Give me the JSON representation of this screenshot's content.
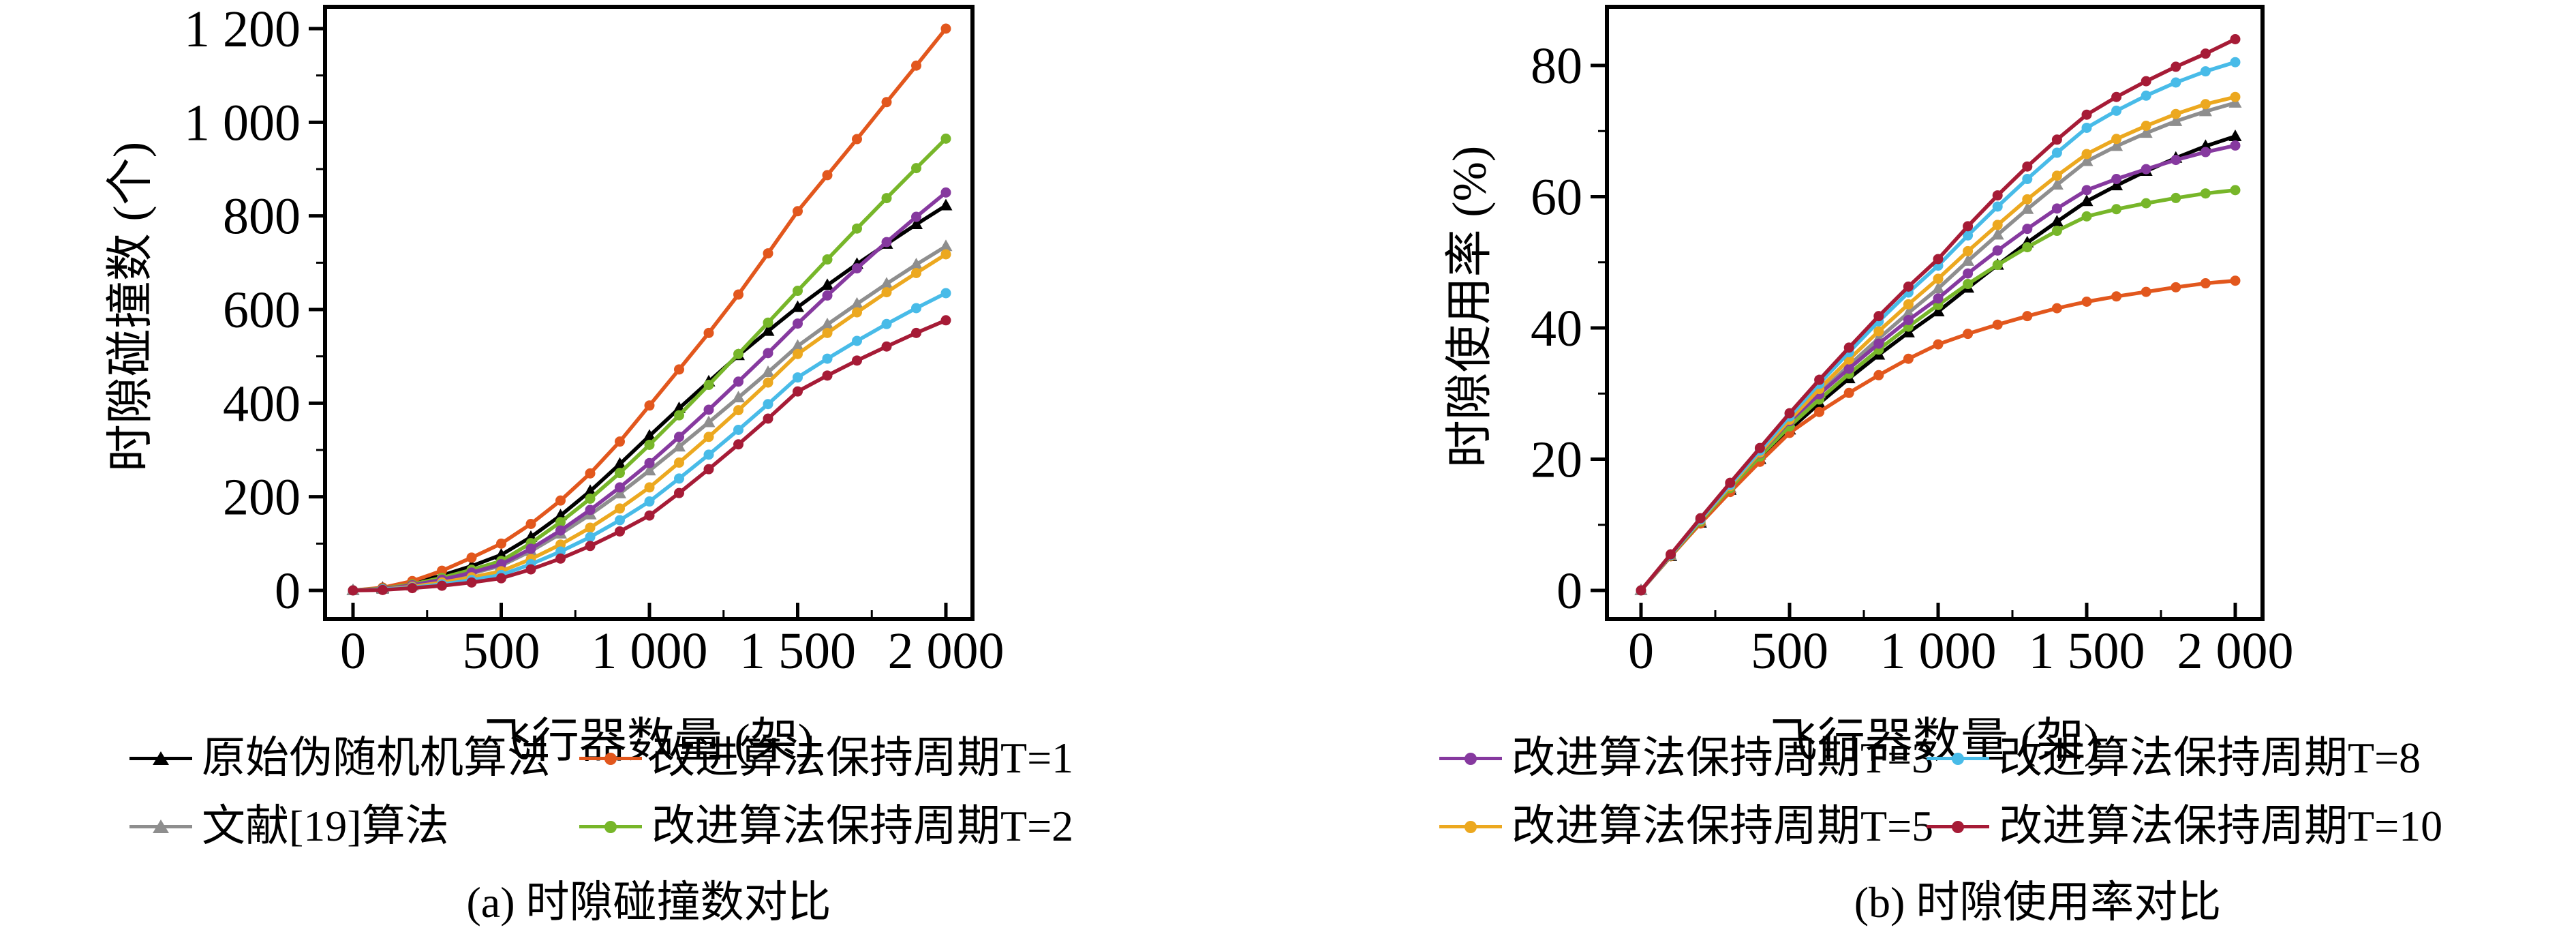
{
  "page": {
    "background": "#ffffff"
  },
  "chart_data": [
    {
      "id": "a",
      "type": "line",
      "title": "(a) 时隙碰撞数对比",
      "xlabel": "飞行器数量 (架)",
      "ylabel": "时隙碰撞数 (个)",
      "xlim": [
        0,
        2000
      ],
      "ylim": [
        0,
        1200
      ],
      "grid": false,
      "legend_position": "below",
      "x_ticks": {
        "values": [
          0,
          500,
          1000,
          1500,
          2000
        ],
        "labels": [
          "0",
          "500",
          "1 000",
          "1 500",
          "2 000"
        ]
      },
      "y_ticks": {
        "values": [
          0,
          200,
          400,
          600,
          800,
          1000,
          1200
        ],
        "labels": [
          "0",
          "200",
          "400",
          "600",
          "800",
          "1 000",
          "1 200"
        ]
      },
      "x": [
        0,
        100,
        200,
        300,
        400,
        500,
        600,
        700,
        800,
        900,
        1000,
        1100,
        1200,
        1300,
        1400,
        1500,
        1600,
        1700,
        1800,
        1900,
        2000
      ],
      "series": [
        {
          "name": "原始伪随机机算法",
          "color": "#000000",
          "marker": "triangle",
          "values": [
            0,
            5,
            16,
            32,
            52,
            76,
            114,
            160,
            212,
            270,
            330,
            389,
            446,
            502,
            554,
            605,
            652,
            697,
            740,
            782,
            822
          ]
        },
        {
          "name": "文献[19]算法",
          "color": "#8e8e8e",
          "marker": "triangle",
          "values": [
            0,
            3,
            10,
            22,
            36,
            53,
            84,
            121,
            162,
            207,
            256,
            307,
            359,
            412,
            466,
            522,
            568,
            612,
            655,
            696,
            735
          ]
        },
        {
          "name": "改进算法保持周期T=1",
          "color": "#e2571d",
          "marker": "circle",
          "values": [
            0,
            6,
            20,
            42,
            70,
            100,
            142,
            192,
            250,
            318,
            395,
            472,
            550,
            632,
            720,
            810,
            887,
            964,
            1043,
            1121,
            1200
          ]
        },
        {
          "name": "改进算法保持周期T=2",
          "color": "#77b629",
          "marker": "circle",
          "values": [
            0,
            4,
            13,
            27,
            44,
            63,
            101,
            146,
            196,
            251,
            311,
            374,
            439,
            505,
            572,
            640,
            707,
            773,
            838,
            902,
            965
          ]
        },
        {
          "name": "改进算法保持周期T=3",
          "color": "#86399f",
          "marker": "circle",
          "values": [
            0,
            3,
            11,
            23,
            38,
            56,
            89,
            128,
            172,
            220,
            272,
            328,
            386,
            446,
            507,
            570,
            630,
            688,
            744,
            798,
            850
          ]
        },
        {
          "name": "改进算法保持周期T=5",
          "color": "#eca81f",
          "marker": "circle",
          "values": [
            0,
            2,
            8,
            17,
            28,
            41,
            67,
            98,
            134,
            175,
            220,
            273,
            328,
            385,
            444,
            505,
            550,
            594,
            637,
            678,
            718
          ]
        },
        {
          "name": "改进算法保持周期T=8",
          "color": "#48bbe8",
          "marker": "circle",
          "values": [
            0,
            2,
            6,
            13,
            22,
            33,
            56,
            83,
            114,
            150,
            190,
            239,
            290,
            343,
            398,
            455,
            495,
            533,
            569,
            603,
            635
          ]
        },
        {
          "name": "改进算法保持周期T=10",
          "color": "#a61b36",
          "marker": "circle",
          "values": [
            0,
            1,
            5,
            10,
            17,
            26,
            45,
            68,
            95,
            126,
            160,
            208,
            259,
            312,
            367,
            425,
            459,
            491,
            521,
            550,
            577
          ]
        }
      ],
      "legend_rows": [
        [
          0,
          2
        ],
        [
          1,
          3
        ]
      ]
    },
    {
      "id": "b",
      "type": "line",
      "title": "(b) 时隙使用率对比",
      "xlabel": "飞行器数量 (架)",
      "ylabel": "时隙使用率 (%)",
      "xlim": [
        0,
        2000
      ],
      "ylim": [
        0,
        80
      ],
      "grid": false,
      "legend_position": "below",
      "x_ticks": {
        "values": [
          0,
          500,
          1000,
          1500,
          2000
        ],
        "labels": [
          "0",
          "500",
          "1 000",
          "1 500",
          "2 000"
        ]
      },
      "y_ticks": {
        "values": [
          0,
          20,
          40,
          60,
          80
        ],
        "labels": [
          "0",
          "20",
          "40",
          "60",
          "80"
        ]
      },
      "x": [
        0,
        100,
        200,
        300,
        400,
        500,
        600,
        700,
        800,
        900,
        1000,
        1100,
        1200,
        1300,
        1400,
        1500,
        1600,
        1700,
        1800,
        1900,
        2000
      ],
      "series": [
        {
          "name": "原始伪随机机算法",
          "color": "#000000",
          "marker": "triangle",
          "values": [
            0,
            5.2,
            10.3,
            15.3,
            20.0,
            24.5,
            28.5,
            32.3,
            35.9,
            39.3,
            42.5,
            46.1,
            49.6,
            53.0,
            56.2,
            59.3,
            61.7,
            63.9,
            65.9,
            67.7,
            69.2
          ]
        },
        {
          "name": "文献[19]算法",
          "color": "#8e8e8e",
          "marker": "triangle",
          "values": [
            0,
            5.3,
            10.5,
            15.6,
            20.6,
            25.5,
            30.0,
            34.3,
            38.4,
            42.3,
            46.0,
            50.2,
            54.2,
            58.1,
            61.8,
            65.4,
            67.7,
            69.7,
            71.5,
            73.0,
            74.3
          ]
        },
        {
          "name": "改进算法保持周期T=1",
          "color": "#e2571d",
          "marker": "circle",
          "values": [
            0,
            5.2,
            10.2,
            15.0,
            19.6,
            24.0,
            27.2,
            30.1,
            32.8,
            35.3,
            37.5,
            39.1,
            40.5,
            41.8,
            43.0,
            44.0,
            44.8,
            45.5,
            46.2,
            46.8,
            47.2
          ]
        },
        {
          "name": "改进算法保持周期T=2",
          "color": "#77b629",
          "marker": "circle",
          "values": [
            0,
            5.3,
            10.5,
            15.6,
            20.4,
            25.0,
            29.1,
            33.0,
            36.7,
            40.2,
            43.5,
            46.7,
            49.6,
            52.3,
            54.8,
            57.0,
            58.1,
            59.0,
            59.8,
            60.5,
            61.0
          ]
        },
        {
          "name": "改进算法保持周期T=3",
          "color": "#86399f",
          "marker": "circle",
          "values": [
            0,
            5.4,
            10.7,
            15.9,
            20.9,
            25.8,
            29.9,
            33.8,
            37.6,
            41.2,
            44.5,
            48.3,
            51.8,
            55.1,
            58.2,
            61.0,
            62.7,
            64.2,
            65.6,
            66.8,
            67.8
          ]
        },
        {
          "name": "改进算法保持周期T=5",
          "color": "#eca81f",
          "marker": "circle",
          "values": [
            0,
            5.4,
            10.7,
            15.9,
            21.0,
            26.0,
            30.7,
            35.2,
            39.5,
            43.6,
            47.5,
            51.7,
            55.7,
            59.6,
            63.2,
            66.5,
            68.8,
            70.8,
            72.6,
            74.1,
            75.2
          ]
        },
        {
          "name": "改进算法保持周期T=8",
          "color": "#48bbe8",
          "marker": "circle",
          "values": [
            0,
            5.4,
            10.8,
            16.1,
            21.3,
            26.5,
            31.5,
            36.3,
            41.0,
            45.4,
            49.5,
            54.1,
            58.5,
            62.7,
            66.7,
            70.5,
            73.1,
            75.4,
            77.4,
            79.1,
            80.5
          ]
        },
        {
          "name": "改进算法保持周期T=10",
          "color": "#a61b36",
          "marker": "circle",
          "values": [
            0,
            5.5,
            11.0,
            16.4,
            21.7,
            27.0,
            32.1,
            37.0,
            41.8,
            46.3,
            50.5,
            55.5,
            60.2,
            64.6,
            68.7,
            72.5,
            75.2,
            77.6,
            79.8,
            81.8,
            84.0
          ]
        }
      ],
      "legend_rows": [
        [
          4,
          6
        ],
        [
          5,
          7
        ]
      ]
    }
  ]
}
